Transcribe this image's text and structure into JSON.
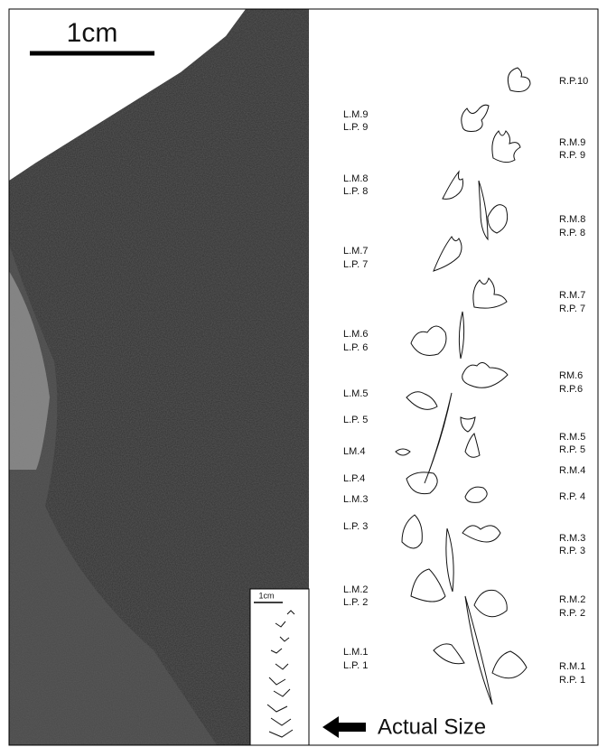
{
  "scale_bar": "1cm",
  "labels_left": [
    "L.M.9",
    "L.P. 9",
    "L.M.8",
    "L.P. 8",
    "L.M.7",
    "L.P. 7",
    "L.M.6",
    "L.P. 6",
    "L.M.5",
    "L.P. 5",
    "LM.4",
    "L.P.4",
    "L.M.3",
    "L.P. 3",
    "L.M.2",
    "L.P. 2",
    "L.M.1",
    "L.P. 1"
  ],
  "labels_right": [
    "R.P.10",
    "R.M.9",
    "R.P. 9",
    "R.M.8",
    "R.P. 8",
    "R.M.7",
    "R.P. 7",
    "RM.6",
    "R.P.6",
    "R.M.5",
    "R.P. 5",
    "R.M.4",
    "R.P. 4",
    "R.M.3",
    "R.P. 3",
    "R.M.2",
    "R.P. 2",
    "R.M.1",
    "R.P. 1"
  ],
  "inset_scale": "1cm",
  "actual_size": "Actual Size"
}
